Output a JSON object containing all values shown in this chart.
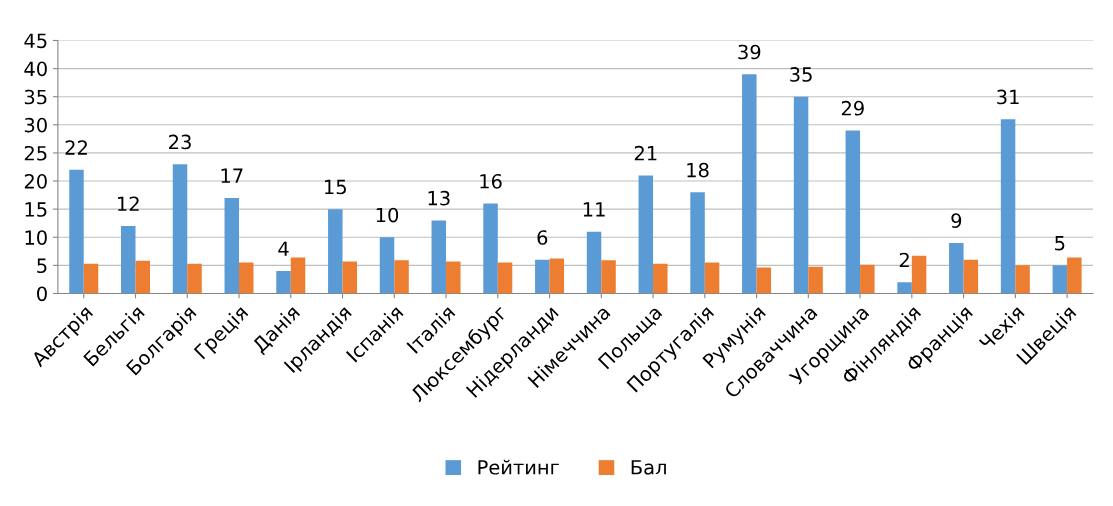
{
  "chart_data": {
    "type": "bar",
    "categories": [
      "Австрія",
      "Бельгія",
      "Болгарія",
      "Греція",
      "Данія",
      "Ірландія",
      "Іспанія",
      "Італія",
      "Люксембург",
      "Нідерланди",
      "Німеччина",
      "Польща",
      "Португалія",
      "Румунія",
      "Словаччина",
      "Угорщина",
      "Фінляндія",
      "Франція",
      "Чехія",
      "Швеція"
    ],
    "series": [
      {
        "name": "Рейтинг",
        "color": "#5b9bd5",
        "values": [
          22,
          12,
          23,
          17,
          4,
          15,
          10,
          13,
          16,
          6,
          11,
          21,
          18,
          39,
          35,
          29,
          2,
          9,
          31,
          5
        ],
        "value_labels": [
          "22",
          "12",
          "23",
          "17",
          "4",
          "15",
          "10",
          "13",
          "16",
          "6",
          "11",
          "21",
          "18",
          "39",
          "35",
          "29",
          "2",
          "9",
          "31",
          "5"
        ]
      },
      {
        "name": "Бал",
        "color": "#ed7d31",
        "values": [
          5.3,
          5.8,
          5.3,
          5.5,
          6.4,
          5.7,
          5.9,
          5.7,
          5.5,
          6.2,
          5.9,
          5.3,
          5.5,
          4.6,
          4.75,
          5.1,
          6.7,
          6.0,
          5.0,
          6.4
        ]
      }
    ],
    "ylim": [
      0,
      45
    ],
    "yticks": [
      0,
      5,
      10,
      15,
      20,
      25,
      30,
      35,
      40,
      45
    ],
    "grid": "y",
    "legend": "bottom"
  }
}
